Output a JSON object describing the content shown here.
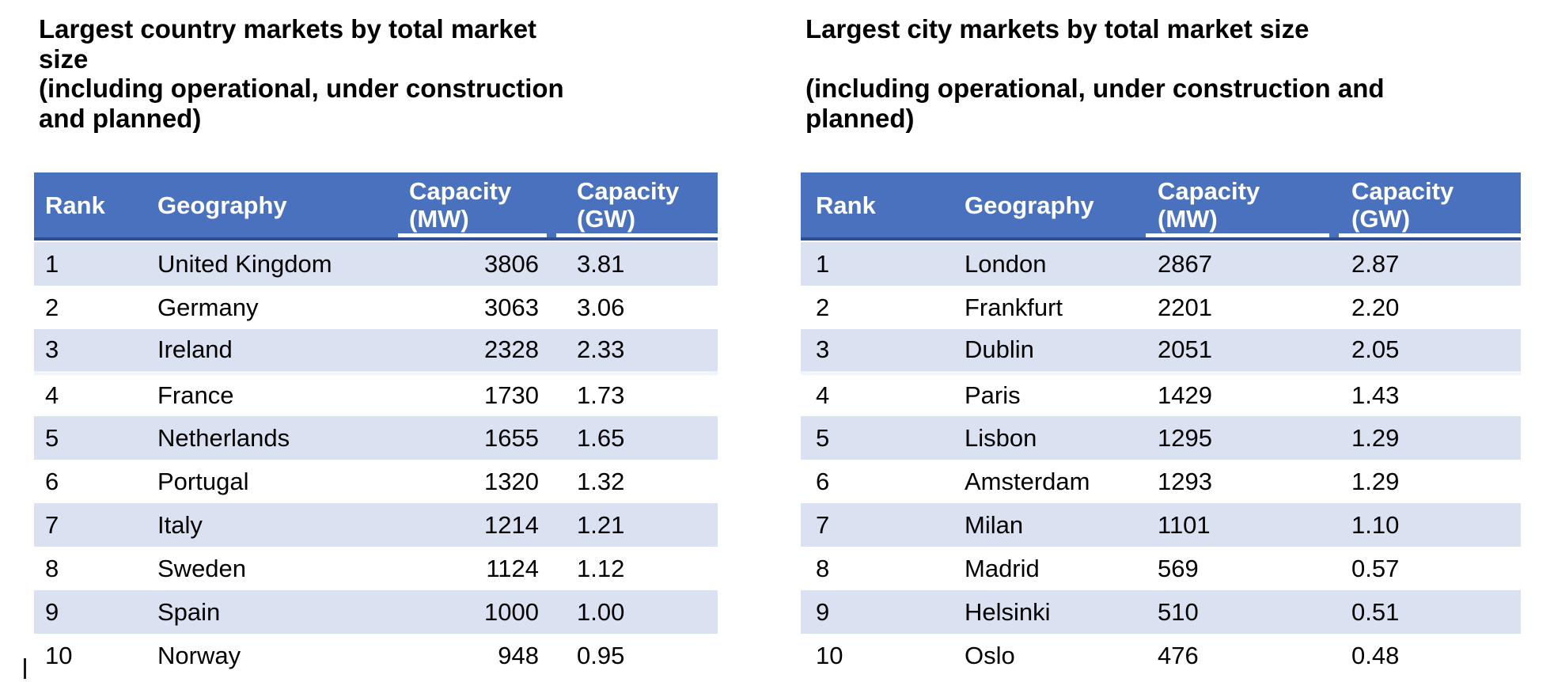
{
  "page": {
    "background": "#ffffff"
  },
  "colors": {
    "header_bg": "#4a71bd",
    "header_text": "#ffffff",
    "band_row_bg": "#dae2f2",
    "header_divider": "#2d4e92",
    "capacity_underline": "#ffffff",
    "body_text": "#000000"
  },
  "tables": [
    {
      "id": "country-markets",
      "title": "Largest country markets by total market\nsize",
      "subtitle": "(including operational, under construction\nand planned)",
      "columns": [
        "Rank",
        "Geography",
        "Capacity\n(MW)",
        "Capacity\n(GW)"
      ],
      "rows": [
        [
          "1",
          "United Kingdom",
          "3806",
          "3.81"
        ],
        [
          "2",
          "Germany",
          "3063",
          "3.06"
        ],
        [
          "3",
          "Ireland",
          "2328",
          "2.33"
        ],
        [
          "4",
          "France",
          "1730",
          "1.73"
        ],
        [
          "5",
          "Netherlands",
          "1655",
          "1.65"
        ],
        [
          "6",
          "Portugal",
          "1320",
          "1.32"
        ],
        [
          "7",
          "Italy",
          "1214",
          "1.21"
        ],
        [
          "8",
          "Sweden",
          "1124",
          "1.12"
        ],
        [
          "9",
          "Spain",
          "1000",
          "1.00"
        ],
        [
          "10",
          "Norway",
          "948",
          "0.95"
        ]
      ]
    },
    {
      "id": "city-markets",
      "title": "Largest city markets by total market size",
      "subtitle": "(including operational, under construction and\nplanned)",
      "columns": [
        "Rank",
        "Geography",
        "Capacity\n(MW)",
        "Capacity\n(GW)"
      ],
      "rows": [
        [
          "1",
          "London",
          "2867",
          "2.87"
        ],
        [
          "2",
          "Frankfurt",
          "2201",
          "2.20"
        ],
        [
          "3",
          "Dublin",
          "2051",
          "2.05"
        ],
        [
          "4",
          "Paris",
          "1429",
          "1.43"
        ],
        [
          "5",
          "Lisbon",
          "1295",
          "1.29"
        ],
        [
          "6",
          "Amsterdam",
          "1293",
          "1.29"
        ],
        [
          "7",
          "Milan",
          "1101",
          "1.10"
        ],
        [
          "8",
          "Madrid",
          "569",
          "0.57"
        ],
        [
          "9",
          "Helsinki",
          "510",
          "0.51"
        ],
        [
          "10",
          "Oslo",
          "476",
          "0.48"
        ]
      ]
    }
  ]
}
